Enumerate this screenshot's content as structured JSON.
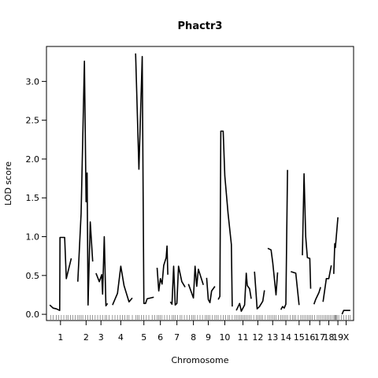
{
  "chart_data": {
    "type": "line",
    "title": "Phactr3",
    "xlabel": "Chromosome",
    "ylabel": "LOD score",
    "ylim": [
      -0.08,
      3.45
    ],
    "yticks": [
      0.0,
      0.5,
      1.0,
      1.5,
      2.0,
      2.5,
      3.0
    ],
    "ytick_labels": [
      "0.0",
      "0.5",
      "1.0",
      "1.5",
      "2.0",
      "2.5",
      "3.0"
    ],
    "grid": false,
    "legend": "none",
    "line_color": "#000000",
    "chromosomes": [
      {
        "label": "1",
        "start": 0,
        "end": 20,
        "points": [
          [
            0,
            0.12
          ],
          [
            2,
            0.08
          ],
          [
            4,
            0.07
          ],
          [
            6,
            0.05
          ],
          [
            6.2,
            0.99
          ],
          [
            9,
            0.99
          ],
          [
            10,
            0.46
          ],
          [
            13,
            0.72
          ]
        ]
      },
      {
        "label": "2",
        "start": 20,
        "end": 38,
        "points": [
          [
            17,
            0.42
          ],
          [
            19,
            1.3
          ],
          [
            21,
            3.26
          ],
          [
            22,
            1.45
          ],
          [
            22.6,
            1.82
          ],
          [
            23.2,
            0.12
          ],
          [
            24.5,
            1.19
          ],
          [
            26,
            0.68
          ]
        ]
      },
      {
        "label": "3",
        "start": 38,
        "end": 50,
        "points": [
          [
            28,
            0.53
          ],
          [
            30,
            0.42
          ],
          [
            31.5,
            0.51
          ],
          [
            32,
            0.26
          ],
          [
            33,
            1.0
          ],
          [
            34,
            0.11
          ],
          [
            35,
            0.14
          ]
        ]
      },
      {
        "label": "4",
        "start": 50,
        "end": 72,
        "points": [
          [
            38,
            0.12
          ],
          [
            41,
            0.27
          ],
          [
            43,
            0.62
          ],
          [
            45,
            0.37
          ],
          [
            48,
            0.16
          ],
          [
            50,
            0.21
          ]
        ]
      },
      {
        "label": "5",
        "start": 72,
        "end": 90,
        "points": [
          [
            52,
            3.36
          ],
          [
            54,
            1.87
          ],
          [
            56,
            3.32
          ],
          [
            57,
            0.14
          ],
          [
            58,
            0.14
          ],
          [
            59,
            0.2
          ],
          [
            63,
            0.22
          ]
        ]
      },
      {
        "label": "6",
        "start": 90,
        "end": 102,
        "points": [
          [
            65,
            0.6
          ],
          [
            66,
            0.3
          ],
          [
            67,
            0.46
          ],
          [
            68,
            0.39
          ],
          [
            69,
            0.63
          ],
          [
            70.5,
            0.73
          ],
          [
            71,
            0.88
          ],
          [
            71.5,
            0.51
          ]
        ]
      },
      {
        "label": "7",
        "start": 102,
        "end": 118,
        "points": [
          [
            73,
            0.16
          ],
          [
            74,
            0.13
          ],
          [
            75,
            0.62
          ],
          [
            76,
            0.12
          ],
          [
            77,
            0.14
          ],
          [
            78,
            0.62
          ],
          [
            80,
            0.42
          ],
          [
            82,
            0.35
          ]
        ]
      },
      {
        "label": "8",
        "start": 118,
        "end": 134,
        "points": [
          [
            84,
            0.39
          ],
          [
            87,
            0.21
          ],
          [
            88,
            0.62
          ],
          [
            89,
            0.36
          ],
          [
            90,
            0.58
          ],
          [
            93,
            0.38
          ]
        ]
      },
      {
        "label": "9",
        "start": 134,
        "end": 148,
        "points": [
          [
            95,
            0.47
          ],
          [
            96,
            0.19
          ],
          [
            97,
            0.15
          ],
          [
            98,
            0.3
          ],
          [
            100,
            0.36
          ]
        ]
      },
      {
        "label": "10",
        "start": 148,
        "end": 163,
        "points": [
          [
            102,
            0.19
          ],
          [
            103,
            0.23
          ],
          [
            103.6,
            2.36
          ],
          [
            105,
            2.36
          ],
          [
            106,
            1.78
          ],
          [
            108,
            1.3
          ],
          [
            110,
            0.9
          ],
          [
            110.5,
            0.1
          ]
        ]
      },
      {
        "label": "11",
        "start": 163,
        "end": 180,
        "points": [
          [
            113,
            0.05
          ],
          [
            115,
            0.14
          ],
          [
            116,
            0.04
          ],
          [
            117,
            0.08
          ],
          [
            118,
            0.12
          ],
          [
            119,
            0.53
          ],
          [
            119.6,
            0.37
          ],
          [
            121,
            0.33
          ],
          [
            122,
            0.2
          ]
        ]
      },
      {
        "label": "12",
        "start": 180,
        "end": 192,
        "points": [
          [
            124,
            0.55
          ],
          [
            125,
            0.25
          ],
          [
            125.6,
            0.07
          ],
          [
            127,
            0.1
          ],
          [
            129,
            0.17
          ],
          [
            130,
            0.31
          ]
        ]
      },
      {
        "label": "13",
        "start": 192,
        "end": 204,
        "points": [
          [
            132,
            0.85
          ],
          [
            134,
            0.83
          ],
          [
            135,
            0.67
          ],
          [
            137,
            0.25
          ],
          [
            138,
            0.54
          ]
        ]
      },
      {
        "label": "14",
        "start": 204,
        "end": 216,
        "points": [
          [
            140,
            0.06
          ],
          [
            141,
            0.1
          ],
          [
            142,
            0.08
          ],
          [
            143,
            0.13
          ],
          [
            144,
            1.86
          ]
        ]
      },
      {
        "label": "15",
        "start": 216,
        "end": 232,
        "points": [
          [
            146,
            0.55
          ],
          [
            149,
            0.53
          ],
          [
            151,
            0.12
          ]
        ]
      },
      {
        "label": "16",
        "start": 232,
        "end": 244,
        "points": [
          [
            153,
            0.76
          ],
          [
            154,
            1.81
          ],
          [
            155,
            1.0
          ],
          [
            156,
            0.73
          ],
          [
            157.5,
            0.72
          ],
          [
            158,
            0.33
          ]
        ]
      },
      {
        "label": "17",
        "start": 244,
        "end": 254,
        "points": [
          [
            160,
            0.13
          ],
          [
            161,
            0.19
          ],
          [
            163,
            0.28
          ],
          [
            164,
            0.35
          ]
        ]
      },
      {
        "label": "18",
        "start": 254,
        "end": 264,
        "points": [
          [
            165.5,
            0.16
          ],
          [
            167.5,
            0.46
          ],
          [
            169,
            0.46
          ],
          [
            170.5,
            0.63
          ]
        ]
      },
      {
        "label": "19",
        "start": 264,
        "end": 272,
        "points": [
          [
            172,
            0.52
          ],
          [
            172.6,
            0.91
          ],
          [
            173,
            0.86
          ],
          [
            174.5,
            1.25
          ]
        ]
      },
      {
        "label": "X",
        "start": 272,
        "end": 284,
        "points": [
          [
            177,
            0.0
          ],
          [
            178,
            0.05
          ],
          [
            180,
            0.05
          ],
          [
            182,
            0.05
          ]
        ]
      }
    ],
    "xlim": [
      -2,
      184
    ],
    "chrom_label_positions": [
      6.5,
      22,
      31,
      43,
      57,
      67,
      77,
      87,
      96,
      106,
      117,
      126,
      135,
      143,
      151,
      157.5,
      163.5,
      169,
      174.5,
      179.5
    ],
    "markers": [
      0.5,
      2,
      4,
      5.5,
      7,
      8.5,
      10,
      11,
      12.5,
      14,
      15.5,
      17,
      18,
      19,
      20,
      21.5,
      23,
      24.5,
      26,
      27.5,
      29,
      30.5,
      32,
      33.5,
      34.5,
      36,
      38,
      39.5,
      41,
      42.5,
      44,
      45.5,
      47,
      48,
      50,
      52,
      53,
      54,
      55.5,
      57,
      58.5,
      60,
      62,
      63.5,
      65,
      66,
      67,
      68,
      69.5,
      71,
      72.5,
      74,
      75,
      76,
      77.5,
      79,
      80,
      81.5,
      83,
      84.5,
      86,
      87,
      88,
      89.5,
      91,
      92.5,
      94,
      95,
      96,
      97,
      98.5,
      100,
      101,
      102,
      103.5,
      105,
      106.5,
      108,
      109,
      110.5,
      112,
      113,
      114,
      115,
      116,
      117,
      118,
      119,
      120,
      121,
      122,
      123.5,
      125,
      126,
      127,
      128,
      129,
      130.5,
      132,
      133,
      134,
      135,
      136,
      137,
      138.5,
      140,
      141,
      142,
      143,
      144,
      145.5,
      147,
      148,
      149,
      150.5,
      152,
      153,
      154,
      155,
      156,
      157,
      158,
      159,
      160.5,
      162,
      163,
      164,
      165,
      166,
      167,
      168,
      169,
      170,
      171,
      172,
      172.6,
      173,
      173.5,
      174,
      175,
      176.5,
      178,
      179.5,
      181,
      182
    ]
  }
}
